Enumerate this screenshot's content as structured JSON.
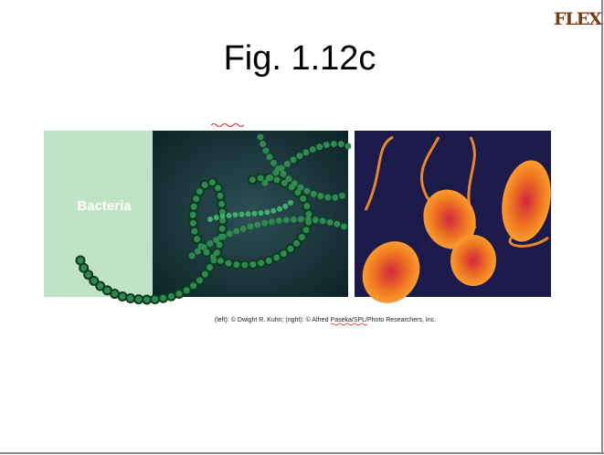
{
  "slide": {
    "logo": "FLEX",
    "title": "Fig. 1.12c",
    "figure": {
      "label": "Bacteria",
      "credit": "(left): © Dwight R. Kuhn; (right): © Alfred Paseka/SPL/Photo Researchers, Inc."
    }
  }
}
